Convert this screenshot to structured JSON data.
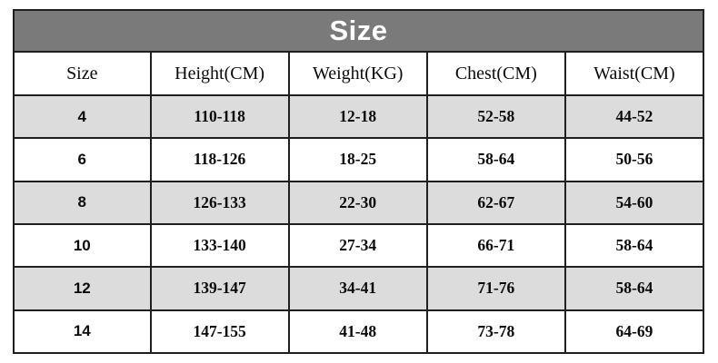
{
  "chart_data": {
    "type": "table",
    "title": "Size",
    "columns": [
      "Size",
      "Height(CM)",
      "Weight(KG)",
      "Chest(CM)",
      "Waist(CM)"
    ],
    "rows": [
      [
        "4",
        "110-118",
        "12-18",
        "52-58",
        "44-52"
      ],
      [
        "6",
        "118-126",
        "18-25",
        "58-64",
        "50-56"
      ],
      [
        "8",
        "126-133",
        "22-30",
        "62-67",
        "54-60"
      ],
      [
        "10",
        "133-140",
        "27-34",
        "66-71",
        "58-64"
      ],
      [
        "12",
        "139-147",
        "34-41",
        "71-76",
        "58-64"
      ],
      [
        "14",
        "147-155",
        "41-48",
        "73-78",
        "64-69"
      ]
    ],
    "layout": {
      "striped": true,
      "stripe_pattern": "odd-rows-gray",
      "header_position": "top",
      "title_position": "top-banner"
    }
  },
  "colors": {
    "title_bg": "#7a7a7a",
    "title_text": "#ffffff",
    "row_alt_bg": "#dcdcdc",
    "row_bg": "#ffffff",
    "border": "#1f1f1f",
    "text": "#0a0a0a"
  }
}
